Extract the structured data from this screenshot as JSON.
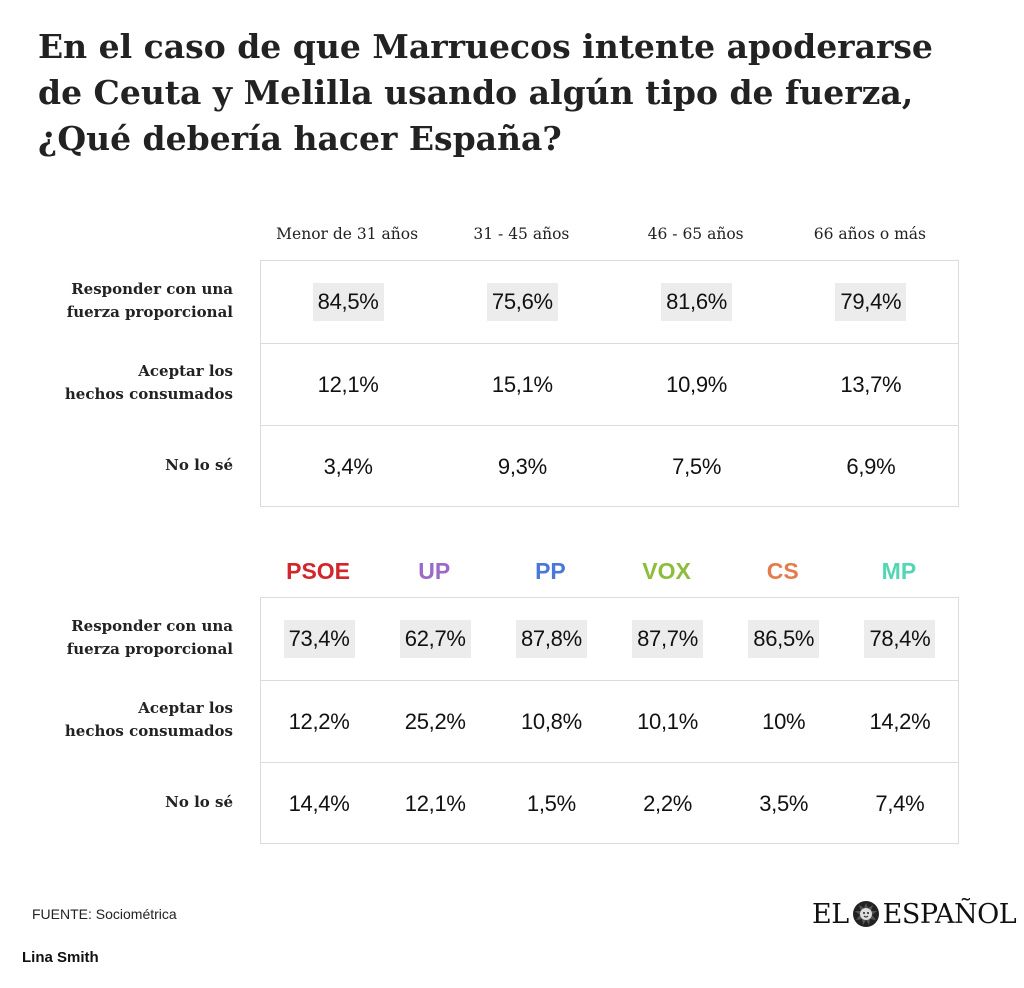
{
  "title": "En el caso de que Marruecos intente apoderarse de Ceuta y Melilla usando algún tipo de fuerza, ¿Qué debería hacer España?",
  "chart_data": [
    {
      "type": "table",
      "columns": [
        "Menor de 31 años",
        "31 - 45 años",
        "46 - 65 años",
        "66 años o más"
      ],
      "rows": [
        {
          "label": [
            "Responder con una",
            "fuerza proporcional"
          ],
          "values": [
            "84,5%",
            "75,6%",
            "81,6%",
            "79,4%"
          ],
          "highlight": true
        },
        {
          "label": [
            "Aceptar los",
            "hechos consumados"
          ],
          "values": [
            "12,1%",
            "15,1%",
            "10,9%",
            "13,7%"
          ],
          "highlight": false
        },
        {
          "label": [
            "No lo sé"
          ],
          "values": [
            "3,4%",
            "9,3%",
            "7,5%",
            "6,9%"
          ],
          "highlight": false
        }
      ]
    },
    {
      "type": "table",
      "columns": [
        "PSOE",
        "UP",
        "PP",
        "VOX",
        "CS",
        "MP"
      ],
      "column_colors": [
        "#d0262c",
        "#9b6ac8",
        "#4a78d8",
        "#8cbd3c",
        "#e37c4c",
        "#52d6b3"
      ],
      "rows": [
        {
          "label": [
            "Responder con una",
            "fuerza proporcional"
          ],
          "values": [
            "73,4%",
            "62,7%",
            "87,8%",
            "87,7%",
            "86,5%",
            "78,4%"
          ],
          "highlight": true
        },
        {
          "label": [
            "Aceptar los",
            "hechos consumados"
          ],
          "values": [
            "12,2%",
            "25,2%",
            "10,8%",
            "10,1%",
            "10%",
            "14,2%"
          ],
          "highlight": false
        },
        {
          "label": [
            "No lo sé"
          ],
          "values": [
            "14,4%",
            "12,1%",
            "1,5%",
            "2,2%",
            "3,5%",
            "7,4%"
          ],
          "highlight": false
        }
      ]
    }
  ],
  "source": "FUENTE: Sociométrica",
  "logo": {
    "left": "EL",
    "right": "ESPAÑOL",
    "icon": "lion-head-icon"
  },
  "author": "Lina Smith"
}
